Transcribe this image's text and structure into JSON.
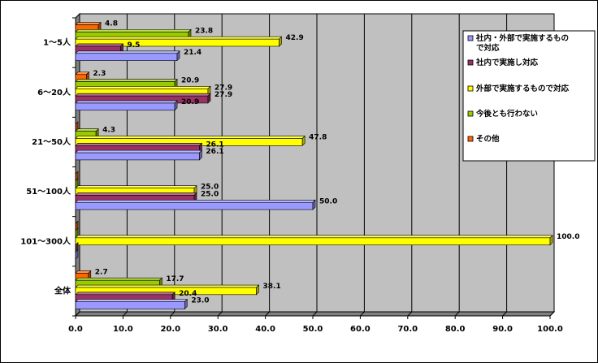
{
  "chart_data": {
    "type": "bar",
    "orientation": "horizontal",
    "categories": [
      "1～5人",
      "6～20人",
      "21～50人",
      "51～100人",
      "101～300人",
      "全体"
    ],
    "series": [
      {
        "name": "社内・外部で実施するもので対応",
        "color": "#9999ff",
        "values": [
          21.4,
          20.9,
          26.1,
          50.0,
          0,
          23.0
        ]
      },
      {
        "name": "社内で実施し対応",
        "color": "#993366",
        "values": [
          9.5,
          27.9,
          26.1,
          25.0,
          0,
          20.4
        ]
      },
      {
        "name": "外部で実施するもので対応",
        "color": "#ffff00",
        "values": [
          42.9,
          27.9,
          47.8,
          25.0,
          100.0,
          38.1
        ]
      },
      {
        "name": "今後とも行わない",
        "color": "#99cc00",
        "values": [
          23.8,
          20.9,
          4.3,
          0,
          0,
          17.7
        ]
      },
      {
        "name": "その他",
        "color": "#ff6600",
        "values": [
          4.8,
          2.3,
          0,
          0,
          0,
          2.7
        ]
      }
    ],
    "data_labels": [
      [
        "21.4",
        "9.5",
        "42.9",
        "23.8",
        "4.8"
      ],
      [
        "20.9",
        "27.9",
        "27.9",
        "20.9",
        "2.3"
      ],
      [
        "26.1",
        "26.1",
        "47.8",
        "4.3",
        ""
      ],
      [
        "50.0",
        "25.0",
        "25.0",
        "",
        ""
      ],
      [
        "",
        "",
        "100.0",
        "",
        ""
      ],
      [
        "23.0",
        "20.4",
        "38.1",
        "17.7",
        "2.7"
      ]
    ],
    "x_ticks": [
      "0.0",
      "10.0",
      "20.0",
      "30.0",
      "40.0",
      "50.0",
      "60.0",
      "70.0",
      "80.0",
      "90.0",
      "100.0"
    ],
    "xlim": [
      0,
      100
    ],
    "grid": true,
    "legend_position": "right",
    "colors": {
      "plot_wall": "#c0c0c0",
      "gridline": "#000000"
    }
  }
}
